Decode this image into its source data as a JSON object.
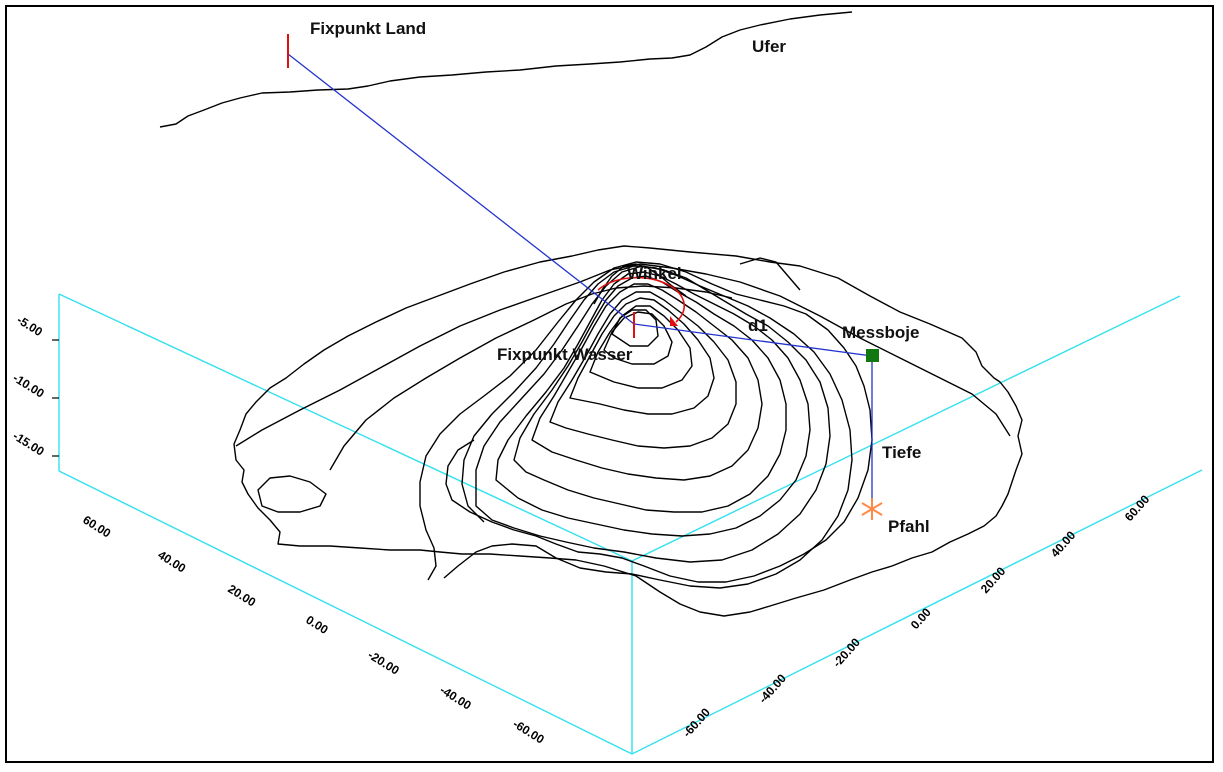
{
  "labels": {
    "fixpunkt_land": "Fixpunkt Land",
    "ufer": "Ufer",
    "winkel": "Winkel",
    "d1": "d1",
    "messboje": "Messboje",
    "fixpunkt_wasser": "Fixpunkt Wasser",
    "tiefe": "Tiefe",
    "pfahl": "Pfahl"
  },
  "axes": {
    "z_ticks": [
      "-5.00",
      "-10.00",
      "-15.00"
    ],
    "left_ticks": [
      "60.00",
      "40.00",
      "20.00",
      "0.00",
      "-20.00",
      "-40.00",
      "-60.00"
    ],
    "right_ticks": [
      "-60.00",
      "-40.00",
      "-20.00",
      "0.00",
      "20.00",
      "40.00",
      "60.00"
    ]
  },
  "colors": {
    "box": "#33e0ee",
    "measurement_line": "#2233cc",
    "marker_fixpoint": "#e01010",
    "marker_buoy": "#117711",
    "marker_pile": "#ff8844",
    "contour": "#000000"
  }
}
